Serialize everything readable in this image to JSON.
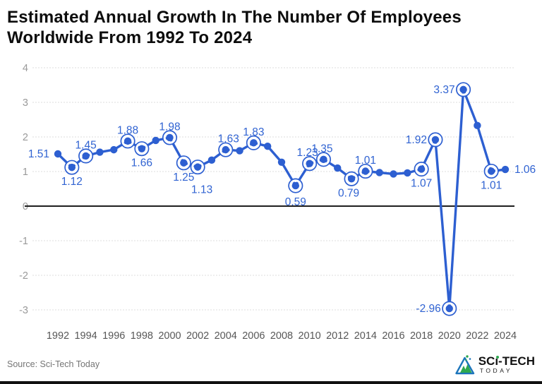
{
  "title": {
    "line1": "Estimated Annual Growth In The Number Of Employees",
    "line2": "Worldwide From 1992 To 2024"
  },
  "source": "Source: Sci-Tech Today",
  "logo": {
    "brand_pre": "SC",
    "brand_i": "ı",
    "brand_post": "-TECH",
    "brand_sub": "TODAY",
    "icon": "triangle-mountain-icon",
    "icon_blue": "#1c75bb",
    "icon_green": "#2ea84f"
  },
  "chart_data": {
    "type": "line",
    "title": "Estimated Annual Growth In The Number Of Employees Worldwide From 1992 To 2024",
    "xlabel": "",
    "ylabel": "",
    "xlim": [
      1992,
      2024
    ],
    "ylim": [
      -3,
      4
    ],
    "grid": true,
    "legend": "none",
    "xticks": [
      1992,
      1994,
      1996,
      1998,
      2000,
      2002,
      2004,
      2006,
      2008,
      2010,
      2012,
      2014,
      2016,
      2018,
      2020,
      2022,
      2024
    ],
    "yticks": [
      4,
      3,
      2,
      1,
      0,
      -1,
      -2,
      -3
    ],
    "points": [
      {
        "year": 1992,
        "value": 1.51,
        "label": "1.51",
        "ring": false,
        "side": "left"
      },
      {
        "year": 1993,
        "value": 1.12,
        "label": "1.12",
        "ring": true,
        "side": "below"
      },
      {
        "year": 1994,
        "value": 1.45,
        "label": "1.45",
        "ring": true,
        "side": "above"
      },
      {
        "year": 1995,
        "value": 1.56
      },
      {
        "year": 1996,
        "value": 1.63
      },
      {
        "year": 1997,
        "value": 1.88,
        "label": "1.88",
        "ring": true,
        "side": "above"
      },
      {
        "year": 1998,
        "value": 1.66,
        "label": "1.66",
        "ring": true,
        "side": "below"
      },
      {
        "year": 1999,
        "value": 1.9
      },
      {
        "year": 2000,
        "value": 1.98,
        "label": "1.98",
        "ring": true,
        "side": "above"
      },
      {
        "year": 2001,
        "value": 1.25,
        "label": "1.25",
        "ring": true,
        "side": "below"
      },
      {
        "year": 2002,
        "value": 1.13,
        "label": "1.13",
        "ring": true,
        "side": "below",
        "dx": 6,
        "dy": 12
      },
      {
        "year": 2003,
        "value": 1.33
      },
      {
        "year": 2004,
        "value": 1.63,
        "label": "1.63",
        "ring": true,
        "side": "above",
        "dx": 4
      },
      {
        "year": 2005,
        "value": 1.6
      },
      {
        "year": 2006,
        "value": 1.83,
        "label": "1.83",
        "ring": true,
        "side": "above"
      },
      {
        "year": 2007,
        "value": 1.73
      },
      {
        "year": 2008,
        "value": 1.27
      },
      {
        "year": 2009,
        "value": 0.59,
        "label": "0.59",
        "ring": true,
        "side": "below",
        "dy": 3
      },
      {
        "year": 2010,
        "value": 1.23,
        "label": "1.23",
        "ring": true,
        "side": "above",
        "dx": -3
      },
      {
        "year": 2011,
        "value": 1.35,
        "label": "1.35",
        "ring": true,
        "side": "above",
        "dx": -2
      },
      {
        "year": 2012,
        "value": 1.1
      },
      {
        "year": 2013,
        "value": 0.79,
        "label": "0.79",
        "ring": true,
        "side": "below",
        "dx": -4
      },
      {
        "year": 2014,
        "value": 1.01,
        "label": "1.01",
        "ring": true,
        "side": "above"
      },
      {
        "year": 2015,
        "value": 0.97
      },
      {
        "year": 2016,
        "value": 0.93
      },
      {
        "year": 2017,
        "value": 0.96
      },
      {
        "year": 2018,
        "value": 1.07,
        "label": "1.07",
        "ring": true,
        "side": "below"
      },
      {
        "year": 2019,
        "value": 1.92,
        "label": "1.92",
        "ring": true,
        "side": "left"
      },
      {
        "year": 2020,
        "value": -2.96,
        "label": "-2.96",
        "ring": true,
        "side": "left"
      },
      {
        "year": 2021,
        "value": 3.37,
        "label": "3.37",
        "ring": true,
        "side": "left"
      },
      {
        "year": 2022,
        "value": 2.33
      },
      {
        "year": 2023,
        "value": 1.01,
        "label": "1.01",
        "ring": true,
        "side": "below"
      },
      {
        "year": 2024,
        "value": 1.06,
        "label": "1.06",
        "side": "right"
      }
    ],
    "colors": {
      "line": "#2d5fd1",
      "label": "#3063d2",
      "grid": "#dedede",
      "zero_line": "#1f1f1f",
      "axis_y": "#9a9a9a",
      "axis_x": "#575757",
      "background": "#ffffff",
      "title": "#0d0d0d"
    }
  }
}
